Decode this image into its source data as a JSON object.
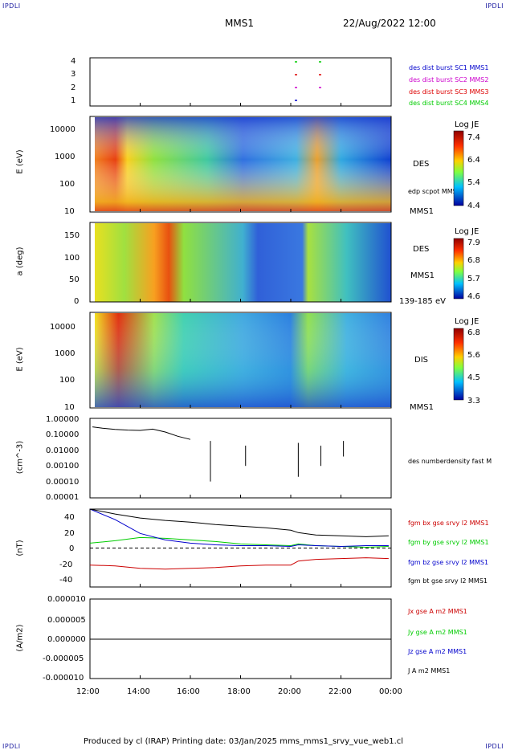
{
  "corners": {
    "tl": "IPDLI",
    "tr": "IPDLI",
    "bl": "IPDLI",
    "br": "IPDLI"
  },
  "header": {
    "mission": "MMS1",
    "datetime": "22/Aug/2022 12:00"
  },
  "footer": {
    "text": "Produced by cl (IRAP)   Printing date: 03/Jan/2025   mms_mms1_srvy_vue_web1.cl"
  },
  "colors": {
    "burst1": "#0000cc",
    "burst2": "#cc00cc",
    "burst3": "#dd0000",
    "burst4": "#00cc00",
    "bx": "#cc0000",
    "by": "#00cc00",
    "bz": "#0000cc",
    "bt": "#000000"
  },
  "chart_data": [
    {
      "type": "scatter",
      "panel": "burst",
      "yticks": [
        "4",
        "3",
        "2",
        "1"
      ],
      "legend": [
        "des dist burst SC1 MMS1",
        "des dist burst SC2 MMS2",
        "des dist burst SC3 MMS3",
        "des dist burst SC4 MMS4"
      ]
    },
    {
      "type": "heatmap",
      "panel": "des-energy",
      "ylabel": "E (eV)",
      "yticks": [
        "10000",
        "1000",
        "100",
        "10"
      ],
      "right_label": "DES",
      "overlay_label": "edp scpot MMS1",
      "bottom_label": "MMS1",
      "colorbar": {
        "title": "Log JE",
        "ticks": [
          "7.4",
          "6.4",
          "5.4",
          "4.4"
        ]
      }
    },
    {
      "type": "heatmap",
      "panel": "des-pitch",
      "ylabel": "a (deg)",
      "yticks": [
        "150",
        "100",
        "50",
        "0"
      ],
      "right_labels": [
        "DES",
        "MMS1",
        "139-185 eV"
      ],
      "colorbar": {
        "title": "Log JE",
        "ticks": [
          "7.9",
          "6.8",
          "5.7",
          "4.6"
        ]
      }
    },
    {
      "type": "heatmap",
      "panel": "dis-energy",
      "ylabel": "E (eV)",
      "yticks": [
        "10000",
        "1000",
        "100",
        "10"
      ],
      "right_label": "DIS",
      "bottom_label": "MMS1",
      "colorbar": {
        "title": "Log JE",
        "ticks": [
          "6.8",
          "5.6",
          "4.5",
          "3.3"
        ]
      }
    },
    {
      "type": "line",
      "panel": "density",
      "ylabel": "(cm^-3)",
      "yticks": [
        "1.00000",
        "0.10000",
        "0.01000",
        "0.00100",
        "0.00010",
        "0.00001"
      ],
      "legend": [
        "des numberdensity fast M"
      ],
      "series": [
        {
          "x": [
            12.1,
            12.5,
            13.0,
            13.5,
            14.0,
            14.5,
            15.0,
            15.5,
            16.0
          ],
          "y": [
            0.32,
            0.26,
            0.22,
            0.2,
            0.19,
            0.23,
            0.15,
            0.08,
            0.05
          ]
        }
      ]
    },
    {
      "type": "line",
      "panel": "fgm",
      "ylabel": "(nT)",
      "yticks": [
        "40",
        "20",
        "0",
        "-20",
        "-40"
      ],
      "ylim": [
        -48,
        48
      ],
      "legend": [
        "fgm bx gse srvy l2 MMS1",
        "fgm by gse srvy l2 MMS1",
        "fgm bz gse srvy l2 MMS1",
        "fgm bt gse srvy l2 MMS1"
      ],
      "x": [
        12,
        13,
        14,
        15,
        16,
        17,
        18,
        19,
        20,
        20.3,
        21,
        22,
        23,
        23.9
      ],
      "series": [
        {
          "name": "fgm bx gse srvy l2 MMS1",
          "values": [
            -21,
            -22,
            -25,
            -26,
            -25,
            -24,
            -22,
            -21,
            -21,
            -16,
            -14,
            -13,
            -12,
            -13
          ]
        },
        {
          "name": "fgm by gse srvy l2 MMS1",
          "values": [
            6,
            9,
            13,
            12,
            10,
            8,
            5,
            4,
            3,
            5,
            3,
            2,
            1,
            2
          ]
        },
        {
          "name": "fgm bz gse srvy l2 MMS1",
          "values": [
            48,
            35,
            18,
            10,
            6,
            4,
            3,
            3,
            2,
            4,
            3,
            2,
            3,
            3
          ]
        },
        {
          "name": "fgm bt gse srvy l2 MMS1",
          "values": [
            48,
            42,
            37,
            34,
            32,
            29,
            27,
            25,
            22,
            19,
            16,
            15,
            14,
            15
          ]
        }
      ]
    },
    {
      "type": "line",
      "panel": "current",
      "ylabel": "(A/m2)",
      "yticks": [
        "0.000010",
        "0.000005",
        "0.000000",
        "-0.000005",
        "-0.000010"
      ],
      "legend": [
        "Jx gse A m2 MMS1",
        "Jy gse A m2 MMS1",
        "Jz gse A m2 MMS1",
        "J A m2 MMS1"
      ],
      "xticks": [
        "12:00",
        "14:00",
        "16:00",
        "18:00",
        "20:00",
        "22:00",
        "00:00"
      ]
    }
  ]
}
